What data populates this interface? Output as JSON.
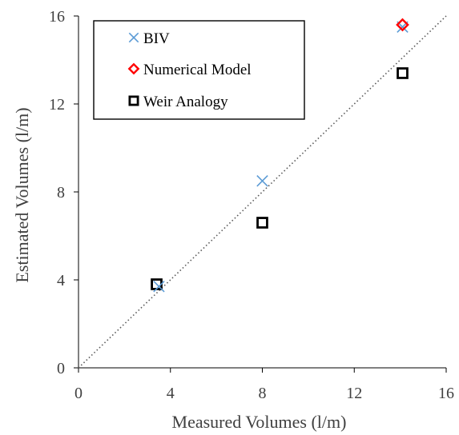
{
  "chart_data": {
    "type": "scatter",
    "xlabel": "Measured Volumes (l/m)",
    "ylabel": "Estimated Volumes (l/m)",
    "xlim": [
      0,
      16
    ],
    "ylim": [
      0,
      16
    ],
    "x_ticks": [
      "0",
      "4",
      "8",
      "12",
      "16"
    ],
    "y_ticks": [
      "0",
      "4",
      "8",
      "12",
      "16"
    ],
    "grid": false,
    "legend_position": "top-left",
    "reference_line": {
      "type": "1:1",
      "style": "dotted"
    },
    "series": [
      {
        "name": "BIV",
        "marker": "x",
        "color": "#5B9BD5",
        "points": [
          [
            3.5,
            3.7
          ],
          [
            8.0,
            8.5
          ],
          [
            14.1,
            15.5
          ]
        ]
      },
      {
        "name": "Numerical Model",
        "marker": "diamond",
        "color": "#FF0000",
        "points": [
          [
            14.1,
            15.6
          ]
        ]
      },
      {
        "name": "Weir Analogy",
        "marker": "square",
        "color": "#000000",
        "points": [
          [
            3.4,
            3.8
          ],
          [
            8.0,
            6.6
          ],
          [
            14.1,
            13.4
          ]
        ]
      }
    ]
  }
}
